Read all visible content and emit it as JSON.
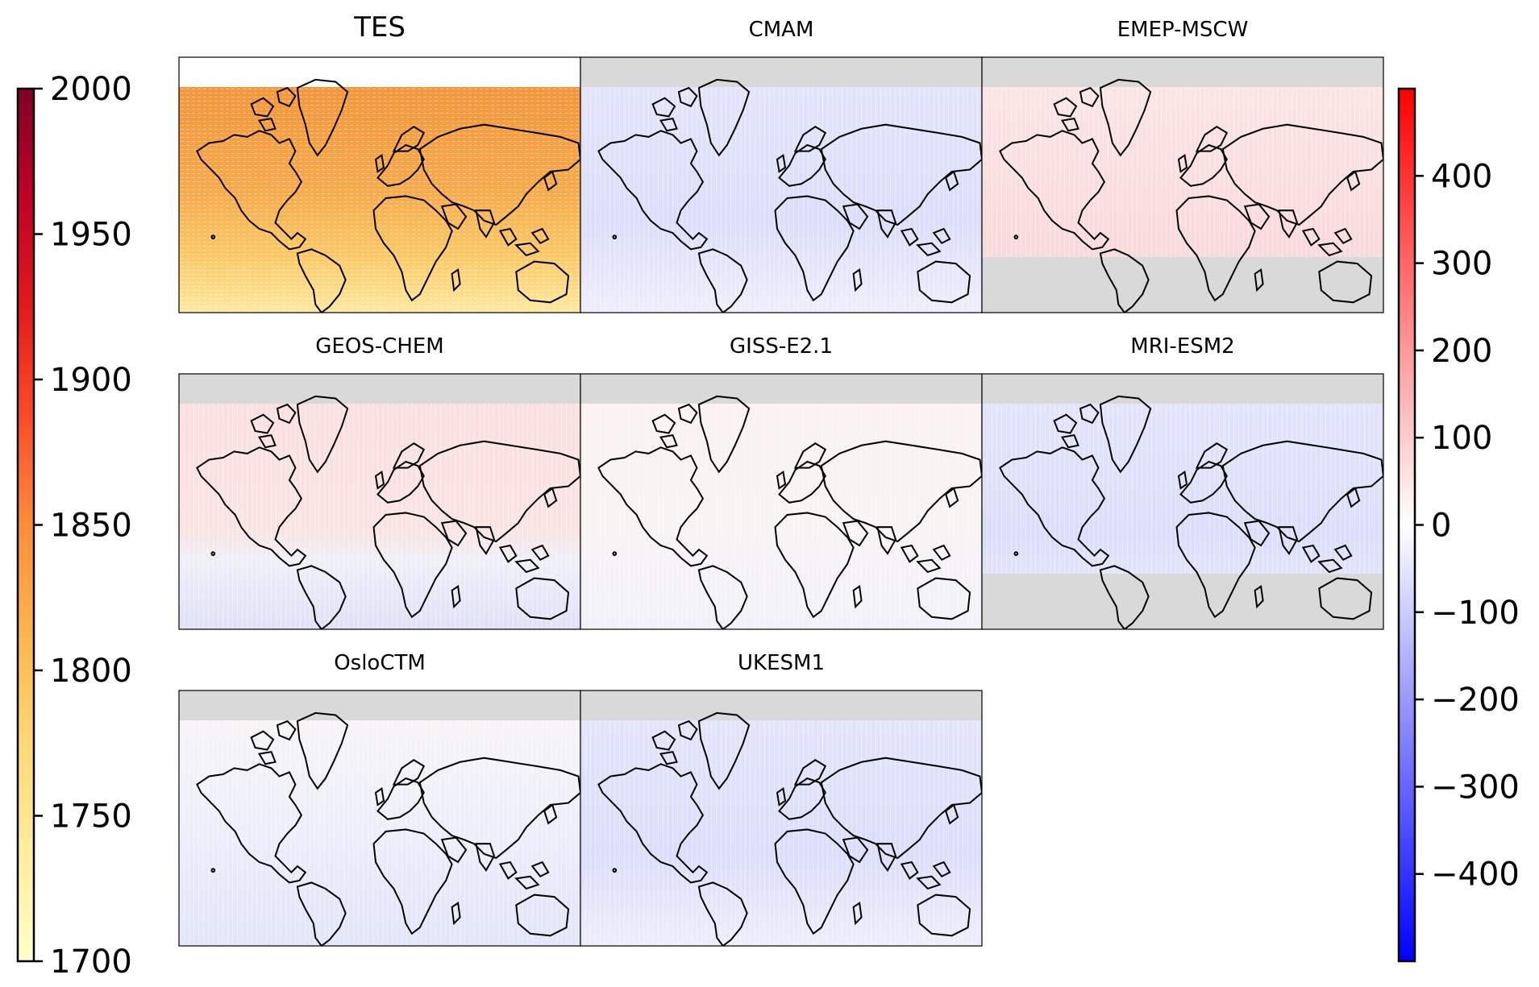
{
  "panels": [
    {
      "title": "TES",
      "kind": "absolute",
      "fill": "north-high",
      "masked_north": false,
      "masked_south": false
    },
    {
      "title": "CMAM",
      "kind": "difference",
      "tint": "blue",
      "masked_north": true,
      "masked_south": false
    },
    {
      "title": "EMEP-MSCW",
      "kind": "difference",
      "tint": "red",
      "masked_north": true,
      "masked_south": true
    },
    {
      "title": "GEOS-CHEM",
      "kind": "difference",
      "tint": "red-north-blue-south",
      "masked_north": true,
      "masked_south": false
    },
    {
      "title": "GISS-E2.1",
      "kind": "difference",
      "tint": "neutral",
      "masked_north": true,
      "masked_south": false
    },
    {
      "title": "MRI-ESM2",
      "kind": "difference",
      "tint": "blue",
      "masked_north": true,
      "masked_south": true
    },
    {
      "title": "OsloCTM",
      "kind": "difference",
      "tint": "light-blue",
      "masked_north": true,
      "masked_south": false
    },
    {
      "title": "UKESM1",
      "kind": "difference",
      "tint": "blue",
      "masked_north": true,
      "masked_south": false
    }
  ],
  "left_colorbar": {
    "colormap": "YlOrRd",
    "range": [
      1700,
      2000
    ],
    "ticks": [
      "2000",
      "1950",
      "1900",
      "1850",
      "1800",
      "1750",
      "1700"
    ],
    "colors": [
      "#ffffcc",
      "#ffeda0",
      "#fed976",
      "#feb24c",
      "#fd8d3c",
      "#fc4e2a",
      "#e31a1c",
      "#bd0026",
      "#800026"
    ]
  },
  "right_colorbar": {
    "colormap": "bwr",
    "range": [
      -500,
      500
    ],
    "ticks": [
      "400",
      "300",
      "200",
      "100",
      "0",
      "−100",
      "−200",
      "−300",
      "−400"
    ],
    "colors": [
      "#0000ff",
      "#ffffff",
      "#ff0000"
    ]
  },
  "colors": {
    "mask_gray": "#d9d9d9",
    "coastline": "#000000"
  }
}
